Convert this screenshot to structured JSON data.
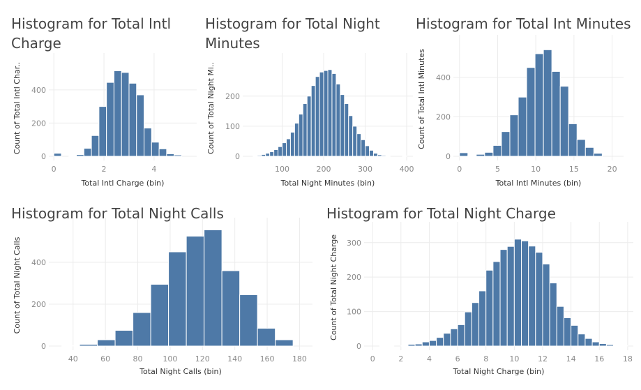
{
  "colors": {
    "bar": "#4e79a7",
    "grid": "#ececec",
    "title": "#444444"
  },
  "chart_data": [
    {
      "type": "bar",
      "title": "Histogram for Total Intl\nCharge",
      "xlabel": "Total Intl Charge (bin)",
      "ylabel": "Count of Total Intl Char..",
      "xlim": [
        -0.2,
        5.7
      ],
      "ylim": [
        0,
        580
      ],
      "xticks": [
        0,
        2,
        4
      ],
      "yticks": [
        0,
        200,
        400
      ],
      "bin_width": 0.3,
      "bins": [
        0.0,
        0.6,
        0.9,
        1.2,
        1.5,
        1.8,
        2.1,
        2.4,
        2.7,
        3.0,
        3.3,
        3.6,
        3.9,
        4.2,
        4.5,
        4.8
      ],
      "values": [
        18,
        3,
        10,
        48,
        125,
        300,
        445,
        515,
        505,
        440,
        370,
        170,
        85,
        45,
        15,
        8
      ]
    },
    {
      "type": "bar",
      "title": "Histogram for Total Night\nMinutes",
      "xlabel": "Total Night Minutes (bin)",
      "ylabel": "Count of Total Night Mi..",
      "xlim": [
        5,
        415
      ],
      "ylim": [
        0,
        320
      ],
      "xticks": [
        100,
        200,
        300,
        400
      ],
      "yticks": [
        0,
        100,
        200
      ],
      "bin_width": 10,
      "bins": [
        30,
        40,
        50,
        60,
        70,
        80,
        90,
        100,
        110,
        120,
        130,
        140,
        150,
        160,
        170,
        180,
        190,
        200,
        210,
        220,
        230,
        240,
        250,
        260,
        270,
        280,
        290,
        300,
        310,
        320,
        330,
        340,
        350,
        390
      ],
      "values": [
        1,
        3,
        6,
        10,
        15,
        22,
        32,
        45,
        58,
        80,
        110,
        140,
        175,
        200,
        235,
        265,
        280,
        285,
        288,
        275,
        240,
        205,
        175,
        135,
        100,
        75,
        55,
        35,
        20,
        10,
        5,
        3,
        1,
        1
      ]
    },
    {
      "type": "bar",
      "title": "Histogram for Total Int Minutes",
      "xlabel": "Total Intl Minutes (bin)",
      "ylabel": "Count of Total Intl Minutes",
      "xlim": [
        -0.8,
        21.5
      ],
      "ylim": [
        0,
        580
      ],
      "xticks": [
        0,
        5,
        10,
        15,
        20
      ],
      "yticks": [
        0,
        200,
        400
      ],
      "bin_width": 1.1,
      "bins": [
        0.0,
        1.1,
        2.2,
        3.3,
        4.4,
        5.5,
        6.6,
        7.7,
        8.8,
        9.9,
        11.0,
        12.1,
        13.2,
        14.3,
        15.4,
        16.5,
        17.6
      ],
      "values": [
        18,
        3,
        10,
        20,
        55,
        125,
        210,
        300,
        450,
        520,
        540,
        430,
        355,
        165,
        85,
        45,
        15
      ]
    },
    {
      "type": "bar",
      "title": "Histogram for Total Night Calls",
      "xlabel": "Total Night Calls (bin)",
      "ylabel": "Count of Total Night Calls",
      "xlim": [
        25,
        188
      ],
      "ylim": [
        0,
        580
      ],
      "xticks": [
        40,
        60,
        80,
        100,
        120,
        140,
        160,
        180
      ],
      "yticks": [
        0,
        200,
        400
      ],
      "bin_width": 11,
      "bins": [
        33,
        44,
        55,
        66,
        77,
        88,
        99,
        110,
        121,
        132,
        143,
        154,
        165
      ],
      "values": [
        2,
        8,
        30,
        75,
        160,
        295,
        450,
        525,
        555,
        360,
        245,
        85,
        30
      ]
    },
    {
      "type": "bar",
      "title": "Histogram for Total Night Charge",
      "xlabel": "Total Night Charge (bin)",
      "ylabel": "Count of Total Night Charge",
      "xlim": [
        -0.6,
        18.4
      ],
      "ylim": [
        0,
        340
      ],
      "xticks": [
        0,
        2,
        4,
        6,
        8,
        10,
        12,
        14,
        16,
        18
      ],
      "yticks": [
        0,
        100,
        200,
        300
      ],
      "bin_width": 0.5,
      "bins": [
        0.5,
        1.0,
        2.0,
        2.5,
        3.0,
        3.5,
        4.0,
        4.5,
        5.0,
        5.5,
        6.0,
        6.5,
        7.0,
        7.5,
        8.0,
        8.5,
        9.0,
        9.5,
        10.0,
        10.5,
        11.0,
        11.5,
        12.0,
        12.5,
        13.0,
        13.5,
        14.0,
        14.5,
        15.0,
        15.5,
        16.0,
        16.5,
        17.0,
        17.5
      ],
      "values": [
        1,
        2,
        1,
        5,
        6,
        12,
        16,
        25,
        37,
        50,
        62,
        99,
        126,
        160,
        220,
        245,
        280,
        289,
        310,
        305,
        290,
        272,
        238,
        183,
        115,
        82,
        60,
        35,
        22,
        12,
        7,
        4,
        1,
        1
      ]
    }
  ]
}
